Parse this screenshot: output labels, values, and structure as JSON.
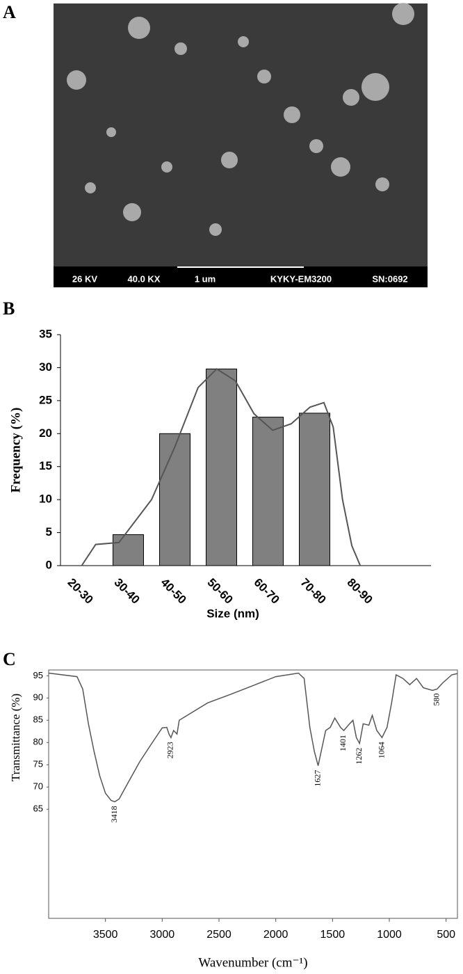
{
  "panel_a": {
    "letter": "A",
    "info": [
      "26 KV",
      "40.0 KX",
      "1 um",
      "KYKY-EM3200",
      "SN:0692"
    ]
  },
  "chart_data": [
    {
      "type": "bar",
      "panel": "B",
      "x_label": "Size (nm)",
      "y_label": "Frequency (%)",
      "categories": [
        "20-30",
        "30-40",
        "40-50",
        "50-60",
        "60-70",
        "70-80",
        "80-90"
      ],
      "values": [
        0,
        4.7,
        20,
        29.8,
        22.5,
        23.1,
        0
      ],
      "color": "#808080",
      "ylim": [
        0,
        35
      ],
      "yticks": [
        0,
        5,
        10,
        15,
        20,
        25,
        30,
        35
      ],
      "curve": {
        "x": [
          25,
          28,
          33,
          40,
          45,
          50,
          54,
          58,
          62,
          66,
          70,
          74,
          77,
          79,
          81,
          83,
          84.8
        ],
        "values": [
          0,
          3.2,
          3.5,
          10,
          18,
          27,
          29.8,
          28,
          23,
          20.5,
          21.5,
          24,
          24.7,
          21,
          10,
          3,
          0
        ]
      }
    },
    {
      "type": "line",
      "panel": "C",
      "x_label": "Wavenumber (cm⁻¹)",
      "y_label": "Transmittance (%)",
      "x": [
        4000,
        3750,
        3700,
        3650,
        3600,
        3550,
        3500,
        3450,
        3418,
        3380,
        3300,
        3200,
        3100,
        3000,
        2960,
        2940,
        2923,
        2900,
        2870,
        2850,
        2800,
        2600,
        2400,
        2200,
        2000,
        1800,
        1750,
        1700,
        1660,
        1627,
        1600,
        1560,
        1520,
        1480,
        1430,
        1401,
        1350,
        1320,
        1290,
        1262,
        1230,
        1180,
        1150,
        1110,
        1064,
        1020,
        980,
        940,
        880,
        820,
        760,
        700,
        620,
        580,
        530,
        450,
        400
      ],
      "values": [
        95.6,
        94.8,
        92,
        84.2,
        78,
        72.5,
        68.6,
        67,
        66.7,
        67.3,
        71,
        75.6,
        79.5,
        83.3,
        83.4,
        81.9,
        81.1,
        82.7,
        81.9,
        85,
        85.8,
        88.9,
        90.8,
        92.8,
        94.8,
        95.6,
        94.4,
        83.4,
        78,
        74.8,
        78,
        82.7,
        83.4,
        85.5,
        83.4,
        82.7,
        84.2,
        85,
        81.1,
        79.8,
        84.2,
        83.9,
        86.1,
        82.7,
        81.1,
        83.4,
        88.9,
        95.2,
        94.4,
        93,
        94.4,
        92.3,
        91.7,
        92,
        93.4,
        95.2,
        95.5
      ],
      "color": "#555555",
      "xlim": [
        4000,
        400
      ],
      "xticks": [
        3500,
        3000,
        2500,
        2000,
        1500,
        1000,
        500
      ],
      "ylim": [
        40.5,
        96.3
      ],
      "yticks": [
        65,
        70,
        75,
        80,
        85,
        90,
        95
      ],
      "peaks": [
        3418,
        2923,
        1627,
        1401,
        1262,
        1064,
        580
      ]
    }
  ]
}
